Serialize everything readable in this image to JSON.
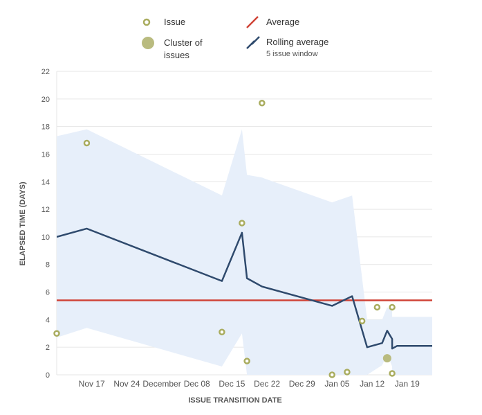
{
  "chart_data": {
    "type": "scatter",
    "xlabel": "ISSUE TRANSITION DATE",
    "ylabel": "ELAPSED TIME (DAYS)",
    "xlim": [
      "2019-11-10",
      "2020-01-24"
    ],
    "ylim": [
      0,
      22
    ],
    "yticks": [
      0,
      2,
      4,
      6,
      8,
      10,
      12,
      14,
      16,
      18,
      20,
      22
    ],
    "xticks": [
      {
        "date": "2019-11-17",
        "label": "Nov 17"
      },
      {
        "date": "2019-11-24",
        "label": "Nov 24"
      },
      {
        "date": "2019-12-01",
        "label": "December"
      },
      {
        "date": "2019-12-08",
        "label": "Dec 08"
      },
      {
        "date": "2019-12-15",
        "label": "Dec 15"
      },
      {
        "date": "2019-12-22",
        "label": "Dec 22"
      },
      {
        "date": "2019-12-29",
        "label": "Dec 29"
      },
      {
        "date": "2020-01-05",
        "label": "Jan 05"
      },
      {
        "date": "2020-01-12",
        "label": "Jan 12"
      },
      {
        "date": "2020-01-19",
        "label": "Jan 19"
      }
    ],
    "grid": true,
    "legend_position": "top",
    "legend": {
      "issue": "Issue",
      "cluster": "Cluster of issues",
      "average": "Average",
      "rolling": "Rolling average",
      "rolling_sub": "5 issue window"
    },
    "average": 5.4,
    "issues": [
      {
        "x": "2019-11-10",
        "y": 3.0
      },
      {
        "x": "2019-11-16",
        "y": 16.8
      },
      {
        "x": "2019-12-13",
        "y": 3.1
      },
      {
        "x": "2019-12-17",
        "y": 11.0
      },
      {
        "x": "2019-12-18",
        "y": 1.0
      },
      {
        "x": "2019-12-21",
        "y": 19.7
      },
      {
        "x": "2020-01-04",
        "y": 0.0
      },
      {
        "x": "2020-01-07",
        "y": 0.2
      },
      {
        "x": "2020-01-10",
        "y": 3.9
      },
      {
        "x": "2020-01-13",
        "y": 4.9
      },
      {
        "x": "2020-01-16",
        "y": 4.9
      },
      {
        "x": "2020-01-16",
        "y": 0.1
      }
    ],
    "clusters": [
      {
        "x": "2020-01-15",
        "y": 1.2
      }
    ],
    "rolling_average": [
      {
        "x": "2019-11-10",
        "y": 10.0
      },
      {
        "x": "2019-11-16",
        "y": 10.6
      },
      {
        "x": "2019-12-13",
        "y": 6.8
      },
      {
        "x": "2019-12-17",
        "y": 10.3
      },
      {
        "x": "2019-12-18",
        "y": 7.0
      },
      {
        "x": "2019-12-21",
        "y": 6.4
      },
      {
        "x": "2020-01-04",
        "y": 5.0
      },
      {
        "x": "2020-01-08",
        "y": 5.7
      },
      {
        "x": "2020-01-11",
        "y": 2.0
      },
      {
        "x": "2020-01-14",
        "y": 2.3
      },
      {
        "x": "2020-01-15",
        "y": 3.2
      },
      {
        "x": "2020-01-16",
        "y": 2.6
      },
      {
        "x": "2020-01-16",
        "y": 1.9
      },
      {
        "x": "2020-01-17",
        "y": 2.1
      },
      {
        "x": "2020-01-24",
        "y": 2.1
      }
    ],
    "band_upper": [
      {
        "x": "2019-11-10",
        "y": 17.3
      },
      {
        "x": "2019-11-16",
        "y": 17.8
      },
      {
        "x": "2019-12-13",
        "y": 13.0
      },
      {
        "x": "2019-12-17",
        "y": 17.8
      },
      {
        "x": "2019-12-18",
        "y": 14.5
      },
      {
        "x": "2019-12-21",
        "y": 14.3
      },
      {
        "x": "2020-01-04",
        "y": 12.5
      },
      {
        "x": "2020-01-08",
        "y": 13.0
      },
      {
        "x": "2020-01-11",
        "y": 4.0
      },
      {
        "x": "2020-01-14",
        "y": 4.0
      },
      {
        "x": "2020-01-15",
        "y": 4.9
      },
      {
        "x": "2020-01-16",
        "y": 4.6
      },
      {
        "x": "2020-01-16",
        "y": 4.2
      },
      {
        "x": "2020-01-17",
        "y": 4.2
      },
      {
        "x": "2020-01-24",
        "y": 4.2
      }
    ],
    "band_lower": [
      {
        "x": "2019-11-10",
        "y": 2.7
      },
      {
        "x": "2019-11-16",
        "y": 3.4
      },
      {
        "x": "2019-12-13",
        "y": 0.6
      },
      {
        "x": "2019-12-17",
        "y": 3.0
      },
      {
        "x": "2019-12-18",
        "y": 0.0
      },
      {
        "x": "2019-12-21",
        "y": 0.0
      },
      {
        "x": "2020-01-04",
        "y": 0.0
      },
      {
        "x": "2020-01-08",
        "y": 0.0
      },
      {
        "x": "2020-01-11",
        "y": 0.0
      },
      {
        "x": "2020-01-14",
        "y": 0.7
      },
      {
        "x": "2020-01-15",
        "y": 1.5
      },
      {
        "x": "2020-01-16",
        "y": 0.6
      },
      {
        "x": "2020-01-16",
        "y": 0.0
      },
      {
        "x": "2020-01-17",
        "y": 0.0
      },
      {
        "x": "2020-01-24",
        "y": 0.0
      }
    ],
    "colors": {
      "issue": "#a9ac5e",
      "cluster": "#b9bb7f",
      "average": "#d04437",
      "rolling": "#2f4a6d",
      "band": "#e7effa",
      "grid": "#e6e6e6",
      "axis_text": "#555555"
    }
  }
}
